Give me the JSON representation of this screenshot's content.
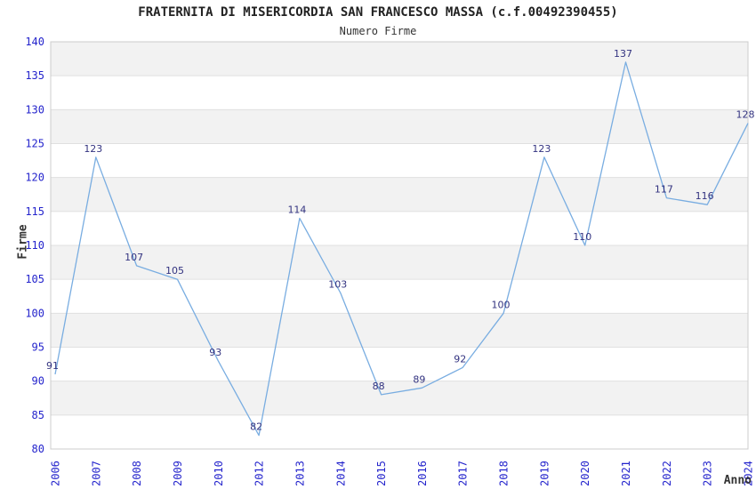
{
  "chart_data": {
    "type": "line",
    "title": "FRATERNITA DI MISERICORDIA SAN FRANCESCO MASSA (c.f.00492390455)",
    "subtitle": "Numero Firme",
    "xlabel": "Anno",
    "ylabel": "Firme",
    "categories": [
      "2006",
      "2007",
      "2008",
      "2009",
      "2010",
      "2012",
      "2013",
      "2014",
      "2015",
      "2016",
      "2017",
      "2018",
      "2019",
      "2020",
      "2021",
      "2022",
      "2023",
      "2024"
    ],
    "values": [
      91,
      123,
      107,
      105,
      93,
      82,
      114,
      103,
      88,
      89,
      92,
      100,
      123,
      110,
      137,
      117,
      116,
      128
    ],
    "ylim": [
      80,
      140
    ],
    "yticks": [
      80,
      85,
      90,
      95,
      100,
      105,
      110,
      115,
      120,
      125,
      130,
      135,
      140
    ],
    "ytick_step": 5,
    "grid": true,
    "banding": true,
    "show_point_labels": true,
    "legend": "none",
    "colors": {
      "line": "#79ade1",
      "tick_label": "#2424cc",
      "point_label": "#333380",
      "band": "#f2f2f2",
      "grid_line": "#e0e0e0",
      "border": "#cccccc",
      "title": "#222222",
      "axis_title": "#333333"
    }
  }
}
